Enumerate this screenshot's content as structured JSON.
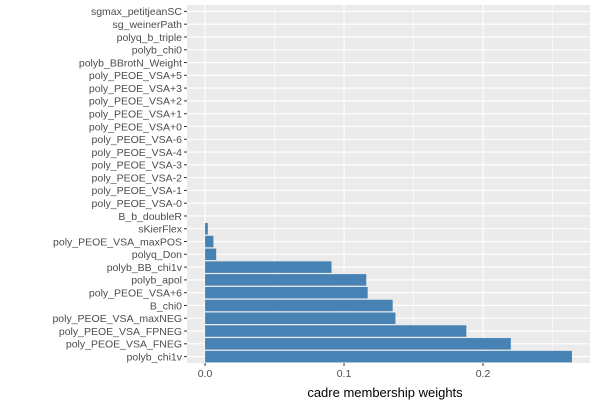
{
  "chart_data": {
    "type": "bar",
    "orientation": "horizontal",
    "title": "",
    "xlabel": "cadre membership weights",
    "ylabel": "",
    "categories": [
      "sgmax_petitjeanSC",
      "sg_weinerPath",
      "polyq_b_triple",
      "polyb_chi0",
      "polyb_BBrotN_Weight",
      "poly_PEOE_VSA+5",
      "poly_PEOE_VSA+3",
      "poly_PEOE_VSA+2",
      "poly_PEOE_VSA+1",
      "poly_PEOE_VSA+0",
      "poly_PEOE_VSA-6",
      "poly_PEOE_VSA-4",
      "poly_PEOE_VSA-3",
      "poly_PEOE_VSA-2",
      "poly_PEOE_VSA-1",
      "poly_PEOE_VSA-0",
      "B_b_doubleR",
      "sKierFlex",
      "poly_PEOE_VSA_maxPOS",
      "polyq_Don",
      "polyb_BB_chi1v",
      "polyb_apol",
      "poly_PEOE_VSA+6",
      "B_chi0",
      "poly_PEOE_VSA_maxNEG",
      "poly_PEOE_VSA_FPNEG",
      "poly_PEOE_VSA_FNEG",
      "polyb_chi1v"
    ],
    "values": [
      0,
      0,
      0,
      0,
      0,
      0,
      0,
      0,
      0,
      0,
      0,
      0,
      0,
      0,
      0,
      0,
      0,
      0.002,
      0.006,
      0.008,
      0.091,
      0.116,
      0.117,
      0.135,
      0.137,
      0.188,
      0.22,
      0.264
    ],
    "xlim": [
      -0.013,
      0.277
    ],
    "xticks": [
      0.0,
      0.1,
      0.2
    ],
    "xtick_labels": [
      "0.0",
      "0.1",
      "0.2"
    ],
    "grid": true,
    "bar_color": "#4682b4",
    "panel_background": "#ebebeb",
    "grid_color": "#ffffff"
  }
}
